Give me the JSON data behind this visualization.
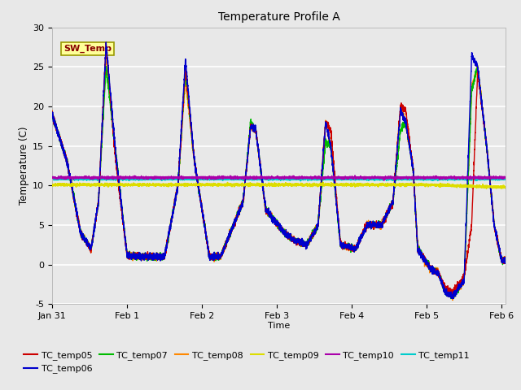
{
  "title": "Temperature Profile A",
  "xlabel": "Time",
  "ylabel": "Temperature (C)",
  "ylim": [
    -5,
    30
  ],
  "xlim": [
    0,
    6.05
  ],
  "bg_color": "#e8e8e8",
  "grid_color": "white",
  "series_colors": {
    "TC_temp05": "#cc0000",
    "TC_temp06": "#0000cc",
    "TC_temp07": "#00bb00",
    "TC_temp08": "#ff8800",
    "TC_temp09": "#dddd00",
    "TC_temp10": "#aa00aa",
    "TC_temp11": "#00cccc"
  },
  "sw_temp_label": "SW_Temp",
  "sw_temp_box_color": "#ffff99",
  "sw_temp_text_color": "#880000",
  "xtick_labels": [
    "Jan 31",
    "Feb 1",
    "Feb 2",
    "Feb 3",
    "Feb 4",
    "Feb 5",
    "Feb 6"
  ],
  "xtick_positions": [
    0,
    1,
    2,
    3,
    4,
    5,
    6
  ],
  "ytick_positions": [
    -5,
    0,
    5,
    10,
    15,
    20,
    25,
    30
  ]
}
